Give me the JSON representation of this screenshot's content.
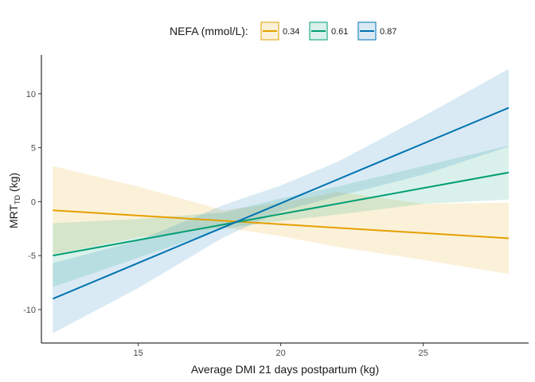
{
  "chart_data": {
    "type": "line",
    "title": "",
    "xlabel": "Average DMI 21 days postpartum (kg)",
    "ylabel": {
      "main": "MRT",
      "subscript": "TD",
      "unit": " (kg)"
    },
    "xlim": [
      11.6,
      28.7
    ],
    "ylim": [
      -13.1,
      13.6
    ],
    "xticks": [
      15,
      20,
      25
    ],
    "yticks": [
      -10,
      -5,
      0,
      5,
      10
    ],
    "grid": false,
    "legend": {
      "title": "NEFA (mmol/L):",
      "placement": "top"
    },
    "series": [
      {
        "name": "0.34",
        "color": "#E69F00",
        "x": [
          12,
          28
        ],
        "y": [
          -0.8,
          -3.4
        ],
        "ci_x": [
          12,
          15,
          18,
          20,
          22,
          25,
          28
        ],
        "ci_lower": [
          -4.9,
          -3.3,
          -2.4,
          -3.2,
          -4.2,
          -5.4,
          -6.7
        ],
        "ci_upper": [
          3.3,
          1.4,
          -0.8,
          -0.1,
          0.9,
          -0.2,
          -0.1
        ]
      },
      {
        "name": "0.61",
        "color": "#009E73",
        "x": [
          12,
          28
        ],
        "y": [
          -5.0,
          2.7
        ],
        "ci_x": [
          12,
          15,
          18,
          20,
          22,
          25,
          28
        ],
        "ci_lower": [
          -7.9,
          -5.2,
          -2.5,
          -1.8,
          -1.2,
          -0.2,
          0.2
        ],
        "ci_upper": [
          -2.0,
          -1.6,
          -1.0,
          0.3,
          1.4,
          3.3,
          5.2
        ]
      },
      {
        "name": "0.87",
        "color": "#0072B2",
        "x": [
          12,
          28
        ],
        "y": [
          -9.0,
          8.7
        ],
        "ci_x": [
          12,
          15,
          18,
          20,
          22,
          25,
          28
        ],
        "ci_lower": [
          -12.2,
          -8.0,
          -3.3,
          -0.9,
          0.5,
          2.5,
          5.1
        ],
        "ci_upper": [
          -5.7,
          -3.6,
          -0.3,
          1.5,
          3.7,
          7.9,
          12.3
        ]
      }
    ]
  }
}
